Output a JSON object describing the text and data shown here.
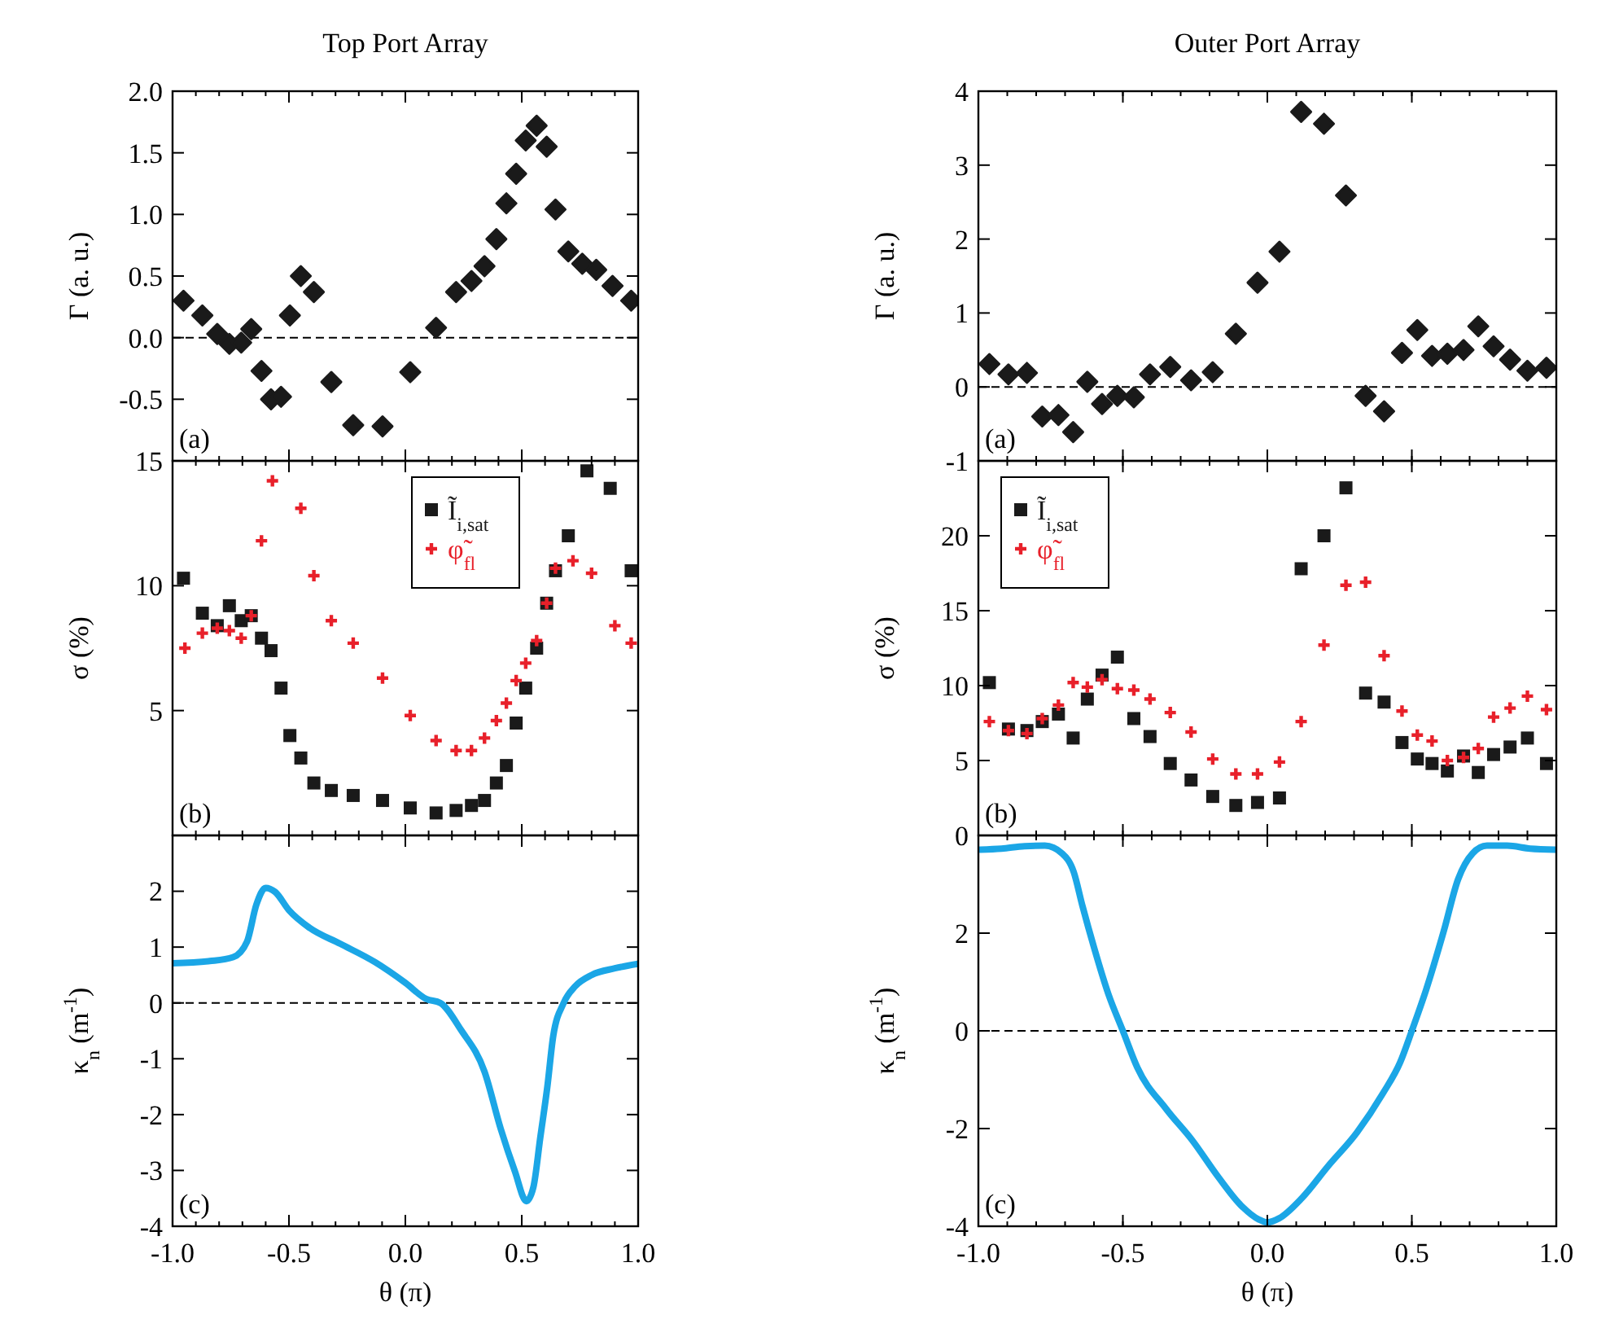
{
  "chart_data": [
    {
      "type": "scatter",
      "title": "Top Port Array",
      "ylabel": "Γ (a. u.)",
      "annotations": [
        "(a)"
      ],
      "xlim": [
        -1,
        1
      ],
      "xticks": [
        -1,
        -0.5,
        0,
        0.5,
        1
      ],
      "ylim": [
        -1,
        2
      ],
      "yticks": [
        -0.5,
        {
          "value": 0,
          "label": "0.0"
        },
        0.5,
        {
          "value": 1,
          "label": "1.0"
        },
        1.5,
        {
          "value": 2,
          "label": "2.0"
        }
      ],
      "tick_labels": "y",
      "ref_lines": [
        {
          "axis": "y",
          "value": 0,
          "line_style": "dashed",
          "color": "#000000"
        }
      ],
      "series": [
        {
          "color": "#1a1a1a",
          "marker": "diamond",
          "x": [
            -0.953,
            -0.872,
            -0.808,
            -0.756,
            -0.705,
            -0.662,
            -0.618,
            -0.577,
            -0.534,
            -0.496,
            -0.449,
            -0.393,
            -0.318,
            -0.224,
            -0.098,
            0.021,
            0.132,
            0.218,
            0.284,
            0.34,
            0.391,
            0.434,
            0.476,
            0.517,
            0.564,
            0.607,
            0.645,
            0.7,
            0.76,
            0.82,
            0.89,
            0.97
          ],
          "values": [
            0.3,
            0.18,
            0.03,
            -0.05,
            -0.04,
            0.07,
            -0.27,
            -0.5,
            -0.48,
            0.18,
            0.5,
            0.37,
            -0.36,
            -0.71,
            -0.72,
            -0.28,
            0.08,
            0.37,
            0.46,
            0.58,
            0.8,
            1.09,
            1.33,
            1.6,
            1.72,
            1.55,
            1.04,
            0.7,
            0.6,
            0.55,
            0.42,
            0.3
          ]
        }
      ]
    },
    {
      "type": "scatter",
      "title": "Outer Port Array",
      "ylabel": "Γ (a. u.)",
      "annotations": [
        "(a)"
      ],
      "xlim": [
        -1,
        1
      ],
      "xticks": [
        -1,
        -0.5,
        0,
        0.5,
        1
      ],
      "ylim": [
        -1,
        4
      ],
      "yticks": [
        -1,
        0,
        1,
        2,
        3,
        4
      ],
      "tick_labels": "y",
      "ref_lines": [
        {
          "axis": "y",
          "value": 0,
          "line_style": "dashed",
          "color": "#000000"
        }
      ],
      "series": [
        {
          "color": "#1a1a1a",
          "marker": "diamond",
          "x": [
            -0.962,
            -0.896,
            -0.832,
            -0.779,
            -0.723,
            -0.672,
            -0.623,
            -0.572,
            -0.519,
            -0.462,
            -0.406,
            -0.336,
            -0.264,
            -0.189,
            -0.109,
            -0.034,
            0.042,
            0.117,
            0.196,
            0.272,
            0.34,
            0.404,
            0.466,
            0.519,
            0.57,
            0.623,
            0.679,
            0.73,
            0.783,
            0.84,
            0.9,
            0.966
          ],
          "values": [
            0.31,
            0.17,
            0.19,
            -0.4,
            -0.38,
            -0.61,
            0.07,
            -0.23,
            -0.12,
            -0.14,
            0.17,
            0.27,
            0.09,
            0.2,
            0.72,
            1.41,
            1.83,
            3.72,
            3.56,
            2.59,
            -0.12,
            -0.33,
            0.46,
            0.77,
            0.42,
            0.45,
            0.5,
            0.82,
            0.55,
            0.37,
            0.22,
            0.26
          ]
        }
      ]
    },
    {
      "type": "scatter",
      "ylabel": "σ (%)",
      "annotations": [
        "(b)"
      ],
      "xlim": [
        -1,
        1
      ],
      "xticks": [
        -1,
        -0.5,
        0,
        0.5,
        1
      ],
      "ylim": [
        0,
        15
      ],
      "yticks": [
        5,
        10,
        15
      ],
      "tick_labels": "y",
      "legend": "top",
      "series": [
        {
          "name": "Ĩ$_{i,sat}$",
          "color": "#1a1a1a",
          "marker": "square",
          "x": [
            -0.953,
            -0.872,
            -0.808,
            -0.756,
            -0.705,
            -0.662,
            -0.618,
            -0.577,
            -0.534,
            -0.496,
            -0.449,
            -0.393,
            -0.318,
            -0.224,
            -0.098,
            0.021,
            0.132,
            0.218,
            0.284,
            0.34,
            0.391,
            0.434,
            0.476,
            0.517,
            0.564,
            0.607,
            0.645,
            0.7,
            0.78,
            0.88,
            0.97
          ],
          "values": [
            10.3,
            8.9,
            8.4,
            9.2,
            8.6,
            8.8,
            7.9,
            7.4,
            5.9,
            4.0,
            3.1,
            2.1,
            1.8,
            1.6,
            1.4,
            1.1,
            0.9,
            1.0,
            1.2,
            1.4,
            2.1,
            2.8,
            4.5,
            5.9,
            7.5,
            9.3,
            10.6,
            12.0,
            14.6,
            13.9,
            10.6
          ]
        },
        {
          "name": "φ̃$_{fl}$",
          "color": "#e8202a",
          "marker": "cross",
          "x": [
            -0.947,
            -0.872,
            -0.808,
            -0.756,
            -0.705,
            -0.662,
            -0.618,
            -0.571,
            -0.449,
            -0.393,
            -0.318,
            -0.224,
            -0.098,
            0.021,
            0.132,
            0.218,
            0.284,
            0.34,
            0.391,
            0.434,
            0.476,
            0.517,
            0.564,
            0.607,
            0.645,
            0.72,
            0.8,
            0.9,
            0.97
          ],
          "values": [
            7.5,
            8.1,
            8.3,
            8.2,
            7.9,
            8.8,
            11.8,
            14.2,
            13.1,
            10.4,
            8.6,
            7.7,
            6.3,
            4.8,
            3.8,
            3.4,
            3.4,
            3.9,
            4.6,
            5.3,
            6.2,
            6.9,
            7.8,
            9.3,
            10.7,
            11.0,
            10.5,
            8.4,
            7.7
          ]
        }
      ]
    },
    {
      "type": "scatter",
      "ylabel": "σ (%)",
      "annotations": [
        "(b)"
      ],
      "xlim": [
        -1,
        1
      ],
      "xticks": [
        -1,
        -0.5,
        0,
        0.5,
        1
      ],
      "ylim": [
        0,
        25
      ],
      "yticks": [
        0,
        5,
        10,
        15,
        20
      ],
      "tick_labels": "y",
      "legend": "top left",
      "series": [
        {
          "name": "Ĩ$_{i,sat}$",
          "color": "#1a1a1a",
          "marker": "square",
          "x": [
            -0.962,
            -0.896,
            -0.832,
            -0.779,
            -0.723,
            -0.672,
            -0.623,
            -0.572,
            -0.519,
            -0.462,
            -0.406,
            -0.336,
            -0.264,
            -0.189,
            -0.109,
            -0.034,
            0.042,
            0.117,
            0.196,
            0.272,
            0.34,
            0.404,
            0.466,
            0.519,
            0.57,
            0.623,
            0.679,
            0.73,
            0.783,
            0.84,
            0.9,
            0.966
          ],
          "values": [
            10.2,
            7.1,
            7.0,
            7.6,
            8.1,
            6.5,
            9.1,
            10.7,
            11.9,
            7.8,
            6.6,
            4.8,
            3.7,
            2.6,
            2.0,
            2.2,
            2.5,
            17.8,
            20.0,
            23.2,
            9.5,
            8.9,
            6.2,
            5.1,
            4.8,
            4.3,
            5.3,
            4.2,
            5.4,
            5.9,
            6.5,
            4.8
          ]
        },
        {
          "name": "φ̃$_{fl}$",
          "color": "#e8202a",
          "marker": "cross",
          "x": [
            -0.962,
            -0.896,
            -0.832,
            -0.779,
            -0.723,
            -0.672,
            -0.623,
            -0.572,
            -0.519,
            -0.462,
            -0.406,
            -0.336,
            -0.264,
            -0.189,
            -0.109,
            -0.034,
            0.042,
            0.117,
            0.196,
            0.272,
            0.34,
            0.404,
            0.466,
            0.519,
            0.57,
            0.623,
            0.679,
            0.73,
            0.783,
            0.84,
            0.9,
            0.966
          ],
          "values": [
            7.6,
            7.0,
            6.8,
            7.8,
            8.7,
            10.2,
            9.9,
            10.4,
            9.8,
            9.7,
            9.1,
            8.2,
            6.9,
            5.1,
            4.1,
            4.1,
            4.9,
            7.6,
            12.7,
            16.7,
            16.9,
            12.0,
            8.3,
            6.7,
            6.3,
            5.0,
            5.2,
            5.8,
            7.9,
            8.5,
            9.3,
            8.4
          ]
        }
      ]
    },
    {
      "type": "line",
      "xlabel": "θ (π)",
      "ylabel": "κ$_{n}$ (m$^{-1}$)",
      "annotations": [
        "(c)"
      ],
      "xlim": [
        -1,
        1
      ],
      "xticks": [
        {
          "value": -1,
          "label": "-1.0"
        },
        -0.5,
        {
          "value": 0,
          "label": "0.0"
        },
        0.5,
        {
          "value": 1,
          "label": "1.0"
        }
      ],
      "ylim": [
        -4,
        3
      ],
      "yticks": [
        -4,
        -3,
        -2,
        -1,
        0,
        1,
        2
      ],
      "ref_lines": [
        {
          "axis": "y",
          "value": 0,
          "line_style": "dashed",
          "color": "#000000"
        }
      ],
      "series": [
        {
          "color": "#1ba6e6",
          "x": [
            -1,
            -0.84,
            -0.74,
            -0.68,
            -0.64,
            -0.6,
            -0.56,
            -0.5,
            -0.41,
            -0.28,
            -0.13,
            0,
            0.09,
            0.15,
            0.24,
            0.34,
            0.41,
            0.47,
            0.52,
            0.55,
            0.58,
            0.61,
            0.635,
            0.68,
            0.73,
            0.8,
            0.9,
            1
          ],
          "values": [
            0.71,
            0.75,
            0.82,
            1.1,
            1.76,
            2.06,
            1.99,
            1.66,
            1.34,
            1.06,
            0.73,
            0.36,
            0.07,
            0,
            -0.49,
            -1.23,
            -2.26,
            -3.01,
            -3.55,
            -3.3,
            -2.4,
            -1.5,
            -0.6,
            0,
            0.3,
            0.5,
            0.62,
            0.7
          ]
        }
      ]
    },
    {
      "type": "line",
      "xlabel": "θ (π)",
      "ylabel": "κ$_{n}$ (m$^{-1}$)",
      "annotations": [
        "(c)"
      ],
      "xlim": [
        -1,
        1
      ],
      "xticks": [
        {
          "value": -1,
          "label": "-1.0"
        },
        -0.5,
        {
          "value": 0,
          "label": "0.0"
        },
        0.5,
        {
          "value": 1,
          "label": "1.0"
        }
      ],
      "ylim": [
        -4,
        4
      ],
      "yticks": [
        -4,
        -2,
        0,
        2
      ],
      "ref_lines": [
        {
          "axis": "y",
          "value": 0,
          "line_style": "dashed",
          "color": "#000000"
        }
      ],
      "series": [
        {
          "color": "#1ba6e6",
          "x": [
            -0.994,
            -0.92,
            -0.84,
            -0.77,
            -0.71,
            -0.67,
            -0.64,
            -0.6,
            -0.55,
            -0.5,
            -0.45,
            -0.35,
            -0.26,
            -0.17,
            -0.09,
            -0.03,
            0,
            0.04,
            0.12,
            0.21,
            0.31,
            0.4,
            0.46,
            0.5,
            0.55,
            0.61,
            0.66,
            0.71,
            0.76,
            0.83,
            0.91,
            0.995
          ],
          "values": [
            3.71,
            3.73,
            3.78,
            3.79,
            3.63,
            3.25,
            2.56,
            1.71,
            0.75,
            0,
            -0.75,
            -1.6,
            -2.24,
            -2.99,
            -3.58,
            -3.86,
            -3.92,
            -3.84,
            -3.42,
            -2.77,
            -2.08,
            -1.28,
            -0.64,
            0,
            0.85,
            2.03,
            3.1,
            3.63,
            3.79,
            3.79,
            3.73,
            3.71
          ]
        }
      ]
    }
  ]
}
